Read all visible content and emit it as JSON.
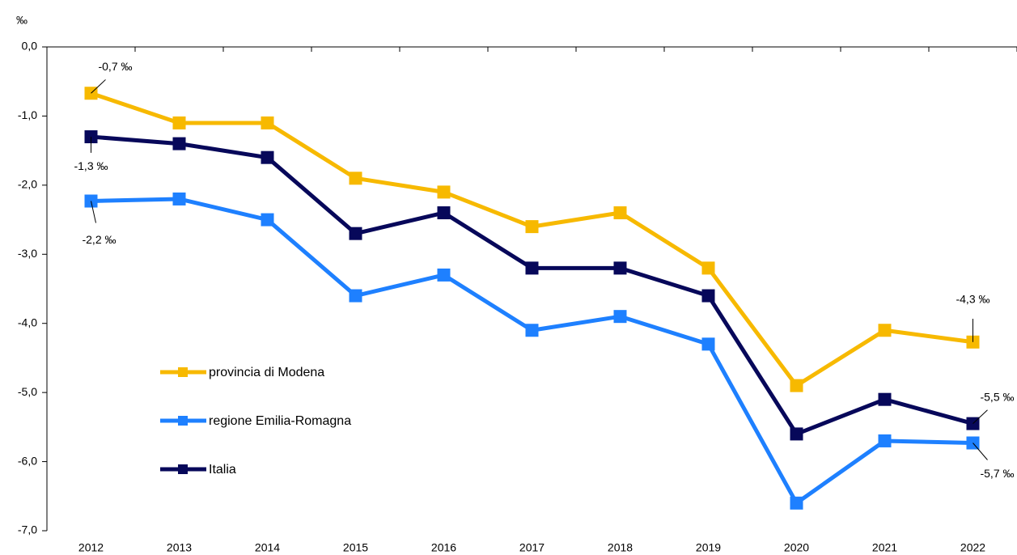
{
  "chart_data": {
    "type": "line",
    "y_label": "‰",
    "categories": [
      "2012",
      "2013",
      "2014",
      "2015",
      "2016",
      "2017",
      "2018",
      "2019",
      "2020",
      "2021",
      "2022"
    ],
    "series": [
      {
        "name": "provincia di Modena",
        "color": "#f7b900",
        "values": [
          -0.67,
          -1.1,
          -1.1,
          -1.9,
          -2.1,
          -2.6,
          -2.4,
          -3.2,
          -4.9,
          -4.1,
          -4.27
        ],
        "value_labels": [
          "-0,7 ‰",
          null,
          null,
          null,
          null,
          null,
          null,
          null,
          null,
          null,
          "-4,3 ‰"
        ]
      },
      {
        "name": "regione Emilia-Romagna",
        "color": "#1e80ff",
        "values": [
          -2.23,
          -2.2,
          -2.5,
          -3.6,
          -3.3,
          -4.1,
          -3.9,
          -4.3,
          -6.6,
          -5.7,
          -5.73
        ],
        "value_labels": [
          "-2,2 ‰",
          null,
          null,
          null,
          null,
          null,
          null,
          null,
          null,
          null,
          "-5,7 ‰"
        ]
      },
      {
        "name": "Italia",
        "color": "#07085a",
        "values": [
          -1.3,
          -1.4,
          -1.6,
          -2.7,
          -2.4,
          -3.2,
          -3.2,
          -3.6,
          -5.6,
          -5.1,
          -5.45
        ],
        "value_labels": [
          "-1,3 ‰",
          null,
          null,
          null,
          null,
          null,
          null,
          null,
          null,
          null,
          "-5,5 ‰"
        ]
      }
    ],
    "ylim": [
      -7,
      0
    ],
    "yticks": [
      {
        "value": 0,
        "label": "0,0"
      },
      {
        "value": -1,
        "label": "-1,0"
      },
      {
        "value": -2,
        "label": "-2,0"
      },
      {
        "value": -3,
        "label": "-3,0"
      },
      {
        "value": -4,
        "label": "-4,0"
      },
      {
        "value": -5,
        "label": "-5,0"
      },
      {
        "value": -6,
        "label": "-6,0"
      },
      {
        "value": -7,
        "label": "-7,0"
      }
    ],
    "legend": "center left"
  }
}
